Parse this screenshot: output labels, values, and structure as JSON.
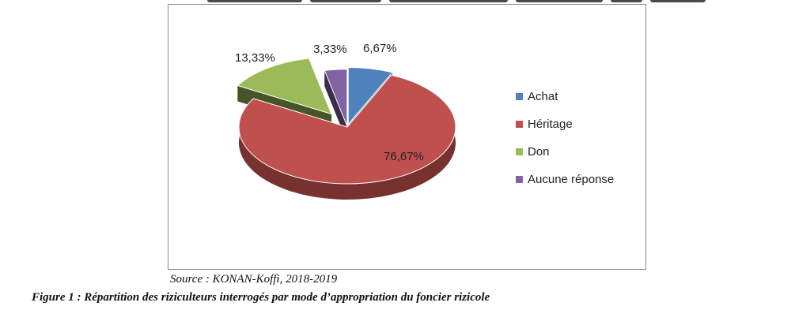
{
  "chart_data": {
    "type": "pie",
    "style": "3d-exploded",
    "categories": [
      "Achat",
      "Héritage",
      "Don",
      "Aucune réponse"
    ],
    "values": [
      6.67,
      76.67,
      13.33,
      3.33
    ],
    "value_labels": [
      "6,67%",
      "76,67%",
      "13,33%",
      "3,33%"
    ],
    "colors": [
      "#4f81bd",
      "#c0504d",
      "#9bbb59",
      "#8064a2"
    ],
    "legend_position": "right",
    "title": ""
  },
  "source": "Source : KONAN-Koffi, 2018-2019",
  "caption": "Figure 1 : Répartition des riziculteurs interrogés par mode d’appropriation du foncier rizicole"
}
